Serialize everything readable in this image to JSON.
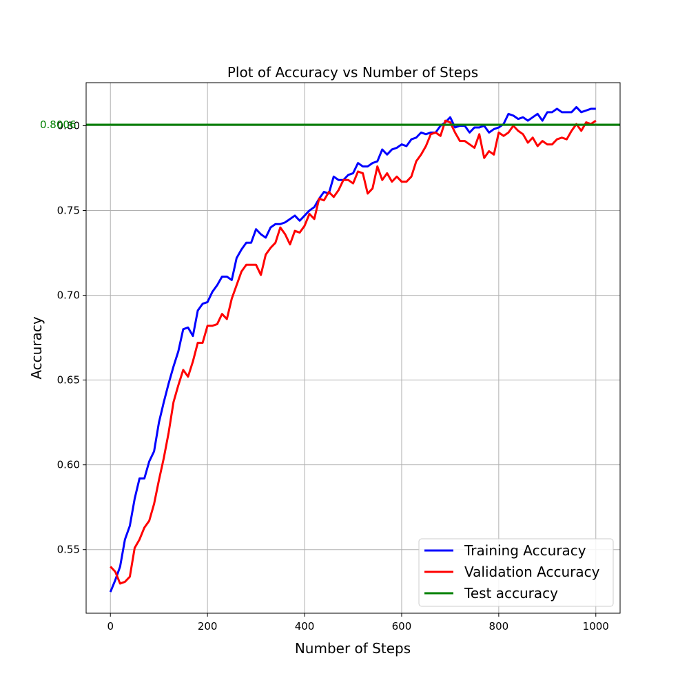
{
  "chart_data": {
    "type": "line",
    "title": "Plot of Accuracy vs Number of Steps",
    "xlabel": "Number of Steps",
    "ylabel": "Accuracy",
    "xlim": [
      -50,
      1050
    ],
    "ylim": [
      0.5125,
      0.8254
    ],
    "xticks": [
      0,
      200,
      400,
      600,
      800,
      1000
    ],
    "yticks": [
      0.55,
      0.6,
      0.65,
      0.7,
      0.75,
      0.8
    ],
    "xtick_labels": [
      "0",
      "200",
      "400",
      "600",
      "800",
      "1000"
    ],
    "ytick_labels": [
      "0.55",
      "0.60",
      "0.65",
      "0.70",
      "0.75",
      "0.80"
    ],
    "grid": true,
    "legend_position": "bottom-right",
    "series": [
      {
        "name": "Training Accuracy",
        "color": "#0000ff",
        "x": [
          0,
          10,
          20,
          30,
          40,
          50,
          60,
          70,
          80,
          90,
          100,
          110,
          120,
          130,
          140,
          150,
          160,
          170,
          180,
          190,
          200,
          210,
          220,
          230,
          240,
          250,
          260,
          270,
          280,
          290,
          300,
          310,
          320,
          330,
          340,
          350,
          360,
          370,
          380,
          390,
          400,
          410,
          420,
          430,
          440,
          450,
          460,
          470,
          480,
          490,
          500,
          510,
          520,
          530,
          540,
          550,
          560,
          570,
          580,
          590,
          600,
          610,
          620,
          630,
          640,
          650,
          660,
          670,
          680,
          690,
          700,
          710,
          720,
          730,
          740,
          750,
          760,
          770,
          780,
          790,
          800,
          810,
          820,
          830,
          840,
          850,
          860,
          870,
          880,
          890,
          900,
          910,
          920,
          930,
          940,
          950,
          960,
          970,
          980,
          990,
          1000
        ],
        "values": [
          0.525,
          0.532,
          0.54,
          0.556,
          0.564,
          0.58,
          0.592,
          0.592,
          0.602,
          0.608,
          0.625,
          0.637,
          0.648,
          0.658,
          0.667,
          0.68,
          0.681,
          0.676,
          0.691,
          0.695,
          0.696,
          0.702,
          0.706,
          0.711,
          0.711,
          0.709,
          0.722,
          0.727,
          0.731,
          0.731,
          0.739,
          0.736,
          0.734,
          0.74,
          0.742,
          0.742,
          0.743,
          0.745,
          0.747,
          0.744,
          0.747,
          0.75,
          0.752,
          0.757,
          0.761,
          0.76,
          0.77,
          0.768,
          0.768,
          0.771,
          0.772,
          0.778,
          0.776,
          0.776,
          0.778,
          0.779,
          0.786,
          0.783,
          0.786,
          0.787,
          0.789,
          0.788,
          0.792,
          0.793,
          0.796,
          0.795,
          0.796,
          0.796,
          0.8,
          0.802,
          0.805,
          0.799,
          0.8,
          0.8,
          0.796,
          0.799,
          0.799,
          0.8,
          0.796,
          0.798,
          0.799,
          0.801,
          0.807,
          0.806,
          0.804,
          0.805,
          0.803,
          0.805,
          0.807,
          0.803,
          0.808,
          0.808,
          0.81,
          0.808,
          0.808,
          0.808,
          0.811,
          0.808,
          0.809,
          0.81,
          0.81
        ]
      },
      {
        "name": "Validation Accuracy",
        "color": "#ff0000",
        "x": [
          0,
          10,
          20,
          30,
          40,
          50,
          60,
          70,
          80,
          90,
          100,
          110,
          120,
          130,
          140,
          150,
          160,
          170,
          180,
          190,
          200,
          210,
          220,
          230,
          240,
          250,
          260,
          270,
          280,
          290,
          300,
          310,
          320,
          330,
          340,
          350,
          360,
          370,
          380,
          390,
          400,
          410,
          420,
          430,
          440,
          450,
          460,
          470,
          480,
          490,
          500,
          510,
          520,
          530,
          540,
          550,
          560,
          570,
          580,
          590,
          600,
          610,
          620,
          630,
          640,
          650,
          660,
          670,
          680,
          690,
          700,
          710,
          720,
          730,
          740,
          750,
          760,
          770,
          780,
          790,
          800,
          810,
          820,
          830,
          840,
          850,
          860,
          870,
          880,
          890,
          900,
          910,
          920,
          930,
          940,
          950,
          960,
          970,
          980,
          990,
          1000
        ],
        "values": [
          0.54,
          0.537,
          0.53,
          0.531,
          0.534,
          0.551,
          0.556,
          0.563,
          0.567,
          0.577,
          0.591,
          0.604,
          0.619,
          0.637,
          0.647,
          0.656,
          0.652,
          0.661,
          0.672,
          0.672,
          0.682,
          0.682,
          0.683,
          0.689,
          0.686,
          0.698,
          0.706,
          0.714,
          0.718,
          0.718,
          0.718,
          0.712,
          0.724,
          0.728,
          0.731,
          0.74,
          0.736,
          0.73,
          0.738,
          0.737,
          0.741,
          0.748,
          0.745,
          0.757,
          0.756,
          0.761,
          0.758,
          0.762,
          0.768,
          0.768,
          0.766,
          0.773,
          0.772,
          0.76,
          0.763,
          0.776,
          0.768,
          0.772,
          0.767,
          0.77,
          0.767,
          0.767,
          0.77,
          0.779,
          0.783,
          0.788,
          0.795,
          0.796,
          0.794,
          0.803,
          0.802,
          0.796,
          0.791,
          0.791,
          0.789,
          0.787,
          0.795,
          0.781,
          0.785,
          0.783,
          0.796,
          0.794,
          0.796,
          0.8,
          0.797,
          0.795,
          0.79,
          0.793,
          0.788,
          0.791,
          0.789,
          0.789,
          0.792,
          0.793,
          0.792,
          0.797,
          0.801,
          0.797,
          0.802,
          0.801,
          0.803
        ]
      },
      {
        "name": "Test accuracy",
        "color": "#008000",
        "type": "hline",
        "value": 0.8006,
        "label": "0.8006"
      }
    ]
  }
}
